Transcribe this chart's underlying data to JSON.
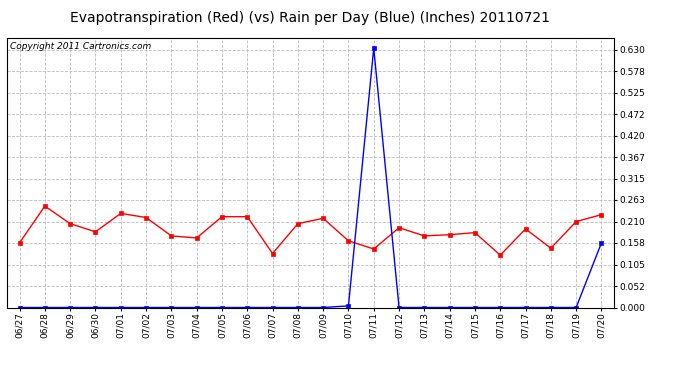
{
  "title": "Evapotranspiration (Red) (vs) Rain per Day (Blue) (Inches) 20110721",
  "copyright": "Copyright 2011 Cartronics.com",
  "x_labels": [
    "06/27",
    "06/28",
    "06/29",
    "06/30",
    "07/01",
    "07/02",
    "07/03",
    "07/04",
    "07/05",
    "07/06",
    "07/07",
    "07/08",
    "07/09",
    "07/10",
    "07/11",
    "07/12",
    "07/13",
    "07/14",
    "07/15",
    "07/16",
    "07/17",
    "07/18",
    "07/19",
    "07/20"
  ],
  "et_values": [
    0.158,
    0.248,
    0.205,
    0.185,
    0.23,
    0.22,
    0.175,
    0.17,
    0.222,
    0.222,
    0.132,
    0.205,
    0.218,
    0.163,
    0.143,
    0.195,
    0.175,
    0.178,
    0.183,
    0.128,
    0.192,
    0.145,
    0.21,
    0.227
  ],
  "rain_values": [
    0.0,
    0.0,
    0.0,
    0.0,
    0.0,
    0.0,
    0.0,
    0.0,
    0.0,
    0.0,
    0.0,
    0.0,
    0.0,
    0.004,
    0.634,
    0.0,
    0.0,
    0.0,
    0.0,
    0.0,
    0.0,
    0.0,
    0.0,
    0.158
  ],
  "et_color": "red",
  "rain_color": "blue",
  "ylim": [
    0.0,
    0.66
  ],
  "yticks": [
    0.0,
    0.052,
    0.105,
    0.158,
    0.21,
    0.263,
    0.315,
    0.367,
    0.42,
    0.472,
    0.525,
    0.578,
    0.63
  ],
  "bg_color": "white",
  "grid_color": "#bbbbbb",
  "title_fontsize": 10,
  "copyright_fontsize": 6.5,
  "tick_labelsize": 6.5,
  "title_color": "black"
}
